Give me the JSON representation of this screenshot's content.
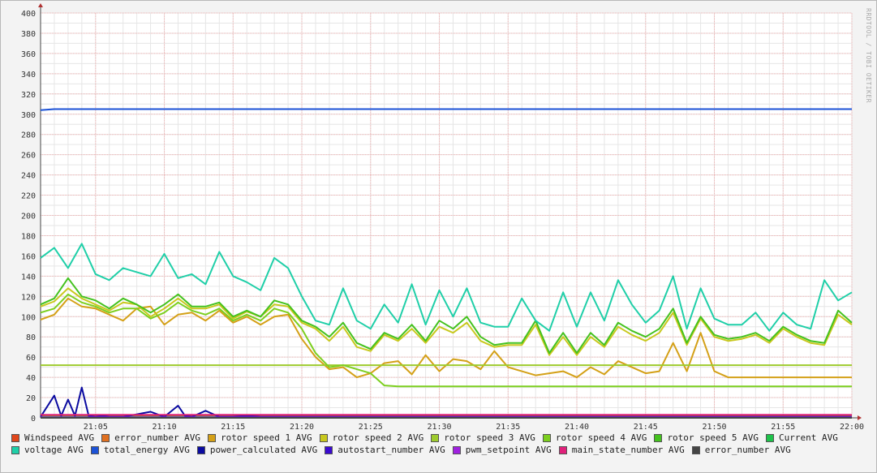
{
  "watermark": "RRDTOOL / TOBI OETIKER",
  "chart_data": {
    "type": "line",
    "ylim": [
      0,
      400
    ],
    "yticks": [
      0,
      20,
      40,
      60,
      80,
      100,
      120,
      140,
      160,
      180,
      200,
      220,
      240,
      260,
      280,
      300,
      320,
      340,
      360,
      380,
      400
    ],
    "xlim": [
      "21:01",
      "22:00"
    ],
    "xticks": [
      "21:05",
      "21:10",
      "21:15",
      "21:20",
      "21:25",
      "21:30",
      "21:35",
      "21:40",
      "21:45",
      "21:50",
      "21:55",
      "22:00"
    ],
    "grid": true,
    "legend_position": "bottom",
    "series": [
      {
        "name": "Windspeed AVG",
        "color": "#e0461b",
        "x": [
          1,
          60
        ],
        "values": [
          2,
          2
        ]
      },
      {
        "name": "error_number AVG",
        "color": "#e07020",
        "x": [
          1,
          60
        ],
        "values": [
          1,
          1
        ]
      },
      {
        "name": "rotor speed 1 AVG",
        "color": "#d4a017",
        "x": [
          1,
          2,
          3,
          4,
          5,
          6,
          7,
          8,
          9,
          10,
          11,
          12,
          13,
          14,
          15,
          16,
          17,
          18,
          19,
          20,
          21,
          22,
          23,
          24,
          25,
          26,
          27,
          28,
          29,
          30,
          31,
          32,
          33,
          34,
          35,
          36,
          37,
          38,
          39,
          40,
          41,
          42,
          43,
          44,
          45,
          46,
          47,
          48,
          49,
          50,
          51,
          52,
          53,
          54,
          55,
          56,
          57,
          58,
          59,
          60
        ],
        "values": [
          97,
          102,
          118,
          110,
          108,
          102,
          96,
          108,
          110,
          92,
          102,
          104,
          96,
          106,
          94,
          100,
          92,
          100,
          102,
          78,
          60,
          48,
          50,
          40,
          44,
          54,
          56,
          43,
          62,
          46,
          58,
          56,
          48,
          66,
          50,
          46,
          42,
          44,
          46,
          40,
          50,
          43,
          56,
          50,
          44,
          46,
          74,
          46,
          84,
          46,
          40,
          40,
          40,
          40,
          40,
          40,
          40,
          40,
          40,
          40
        ]
      },
      {
        "name": "rotor speed 2 AVG",
        "color": "#c8c81e",
        "x": [
          1,
          2,
          3,
          4,
          5,
          6,
          7,
          8,
          9,
          10,
          11,
          12,
          13,
          14,
          15,
          16,
          17,
          18,
          19,
          20,
          21,
          22,
          23,
          24,
          25,
          26,
          27,
          28,
          29,
          30,
          31,
          32,
          33,
          34,
          35,
          36,
          37,
          38,
          39,
          40,
          41,
          42,
          43,
          44,
          45,
          46,
          47,
          48,
          49,
          50,
          51,
          52,
          53,
          54,
          55,
          56,
          57,
          58,
          59,
          60
        ],
        "values": [
          110,
          115,
          128,
          118,
          112,
          106,
          114,
          112,
          100,
          108,
          118,
          108,
          108,
          112,
          98,
          105,
          100,
          112,
          110,
          94,
          88,
          76,
          90,
          70,
          66,
          82,
          76,
          88,
          74,
          90,
          84,
          94,
          76,
          70,
          72,
          72,
          92,
          62,
          80,
          62,
          80,
          70,
          90,
          82,
          76,
          84,
          104,
          72,
          98,
          80,
          76,
          78,
          82,
          74,
          88,
          80,
          74,
          72,
          102,
          92
        ]
      },
      {
        "name": "rotor speed 3 AVG",
        "color": "#9ecb2e",
        "x": [
          1,
          2,
          3,
          4,
          5,
          6,
          7,
          8,
          9,
          10,
          11,
          12,
          13,
          14,
          15,
          16,
          17,
          18,
          19,
          20,
          21,
          22,
          23,
          24,
          25,
          26,
          27,
          28,
          29,
          30,
          31,
          32,
          33,
          34,
          35,
          36,
          37,
          38,
          39,
          40,
          41,
          42,
          43,
          44,
          45,
          46,
          47,
          48,
          49,
          50,
          51,
          52,
          53,
          54,
          55,
          56,
          57,
          58,
          59,
          60
        ],
        "values": [
          52,
          52,
          52,
          52,
          52,
          52,
          52,
          52,
          52,
          52,
          52,
          52,
          52,
          52,
          52,
          52,
          52,
          52,
          52,
          52,
          52,
          52,
          52,
          52,
          52,
          52,
          52,
          52,
          52,
          52,
          52,
          52,
          52,
          52,
          52,
          52,
          52,
          52,
          52,
          52,
          52,
          52,
          52,
          52,
          52,
          52,
          52,
          52,
          52,
          52,
          52,
          52,
          52,
          52,
          52,
          52,
          52,
          52,
          52,
          52
        ]
      },
      {
        "name": "rotor speed 4 AVG",
        "color": "#7ccf1f",
        "x": [
          1,
          2,
          3,
          4,
          5,
          6,
          7,
          8,
          9,
          10,
          11,
          12,
          13,
          14,
          15,
          16,
          17,
          18,
          19,
          20,
          21,
          22,
          23,
          24,
          25,
          26,
          27,
          28,
          29,
          30,
          31,
          32,
          33,
          34,
          35,
          36,
          37,
          38,
          39,
          40,
          41,
          42,
          43,
          44,
          45,
          46,
          47,
          48,
          49,
          50,
          51,
          52,
          53,
          54,
          55,
          56,
          57,
          58,
          59,
          60
        ],
        "values": [
          104,
          108,
          122,
          114,
          110,
          104,
          108,
          108,
          98,
          104,
          114,
          106,
          102,
          108,
          96,
          102,
          96,
          108,
          104,
          88,
          64,
          50,
          52,
          48,
          44,
          32,
          31,
          31,
          31,
          31,
          31,
          31,
          31,
          31,
          31,
          31,
          31,
          31,
          31,
          31,
          31,
          31,
          31,
          31,
          31,
          31,
          31,
          31,
          31,
          31,
          31,
          31,
          31,
          31,
          31,
          31,
          31,
          31,
          31,
          31
        ]
      },
      {
        "name": "rotor speed 5 AVG",
        "color": "#44c21e",
        "x": [
          1,
          2,
          3,
          4,
          5,
          6,
          7,
          8,
          9,
          10,
          11,
          12,
          13,
          14,
          15,
          16,
          17,
          18,
          19,
          20,
          21,
          22,
          23,
          24,
          25,
          26,
          27,
          28,
          29,
          30,
          31,
          32,
          33,
          34,
          35,
          36,
          37,
          38,
          39,
          40,
          41,
          42,
          43,
          44,
          45,
          46,
          47,
          48,
          49,
          50,
          51,
          52,
          53,
          54,
          55,
          56,
          57,
          58,
          59,
          60
        ],
        "values": [
          112,
          118,
          138,
          120,
          116,
          108,
          118,
          112,
          104,
          112,
          122,
          110,
          110,
          114,
          100,
          106,
          100,
          116,
          112,
          96,
          90,
          80,
          94,
          74,
          68,
          84,
          78,
          92,
          76,
          96,
          88,
          100,
          80,
          72,
          74,
          74,
          96,
          64,
          84,
          64,
          84,
          72,
          94,
          86,
          80,
          88,
          108,
          74,
          100,
          82,
          78,
          80,
          84,
          76,
          90,
          82,
          76,
          74,
          106,
          94
        ]
      },
      {
        "name": "Current AVG",
        "color": "#1ec24a",
        "x": [
          1,
          60
        ],
        "values": [
          1,
          1
        ]
      },
      {
        "name": "voltage AVG",
        "color": "#1fcfa8",
        "x": [
          1,
          2,
          3,
          4,
          5,
          6,
          7,
          8,
          9,
          10,
          11,
          12,
          13,
          14,
          15,
          16,
          17,
          18,
          19,
          20,
          21,
          22,
          23,
          24,
          25,
          26,
          27,
          28,
          29,
          30,
          31,
          32,
          33,
          34,
          35,
          36,
          37,
          38,
          39,
          40,
          41,
          42,
          43,
          44,
          45,
          46,
          47,
          48,
          49,
          50,
          51,
          52,
          53,
          54,
          55,
          56,
          57,
          58,
          59,
          60
        ],
        "values": [
          158,
          168,
          148,
          172,
          142,
          136,
          148,
          144,
          140,
          162,
          138,
          142,
          132,
          164,
          140,
          134,
          126,
          158,
          148,
          120,
          96,
          92,
          128,
          96,
          88,
          112,
          94,
          132,
          92,
          126,
          100,
          128,
          94,
          90,
          90,
          118,
          96,
          86,
          124,
          90,
          124,
          96,
          136,
          112,
          94,
          106,
          140,
          88,
          128,
          98,
          92,
          92,
          104,
          86,
          104,
          92,
          88,
          136,
          116,
          124
        ]
      },
      {
        "name": "total_energy AVG",
        "color": "#1c52d6",
        "x": [
          1,
          2,
          60
        ],
        "values": [
          304,
          305,
          305
        ]
      },
      {
        "name": "power_calculated AVG",
        "color": "#0a0aa0",
        "x": [
          1,
          2,
          2.5,
          3,
          3.5,
          4,
          4.5,
          5,
          5.5,
          6,
          7,
          9,
          10,
          11,
          11.5,
          12,
          13,
          14,
          15,
          16,
          17,
          18,
          20,
          60
        ],
        "values": [
          1,
          22,
          2,
          18,
          2,
          30,
          2,
          1,
          2,
          1,
          1,
          6,
          1,
          12,
          2,
          1,
          7,
          1,
          1,
          2,
          1,
          1,
          1,
          1
        ]
      },
      {
        "name": "autostart_number AVG",
        "color": "#3a0ad0",
        "x": [
          1,
          60
        ],
        "values": [
          0,
          0
        ]
      },
      {
        "name": "pwm_setpoint AVG",
        "color": "#a020e0",
        "x": [
          1,
          60
        ],
        "values": [
          0.5,
          0.5
        ]
      },
      {
        "name": "main_state_number AVG",
        "color": "#e0207a",
        "x": [
          1,
          60
        ],
        "values": [
          3,
          3
        ]
      },
      {
        "name": "error_number AVG",
        "color": "#444444",
        "x": [
          1,
          60
        ],
        "values": [
          0,
          0
        ]
      }
    ]
  }
}
